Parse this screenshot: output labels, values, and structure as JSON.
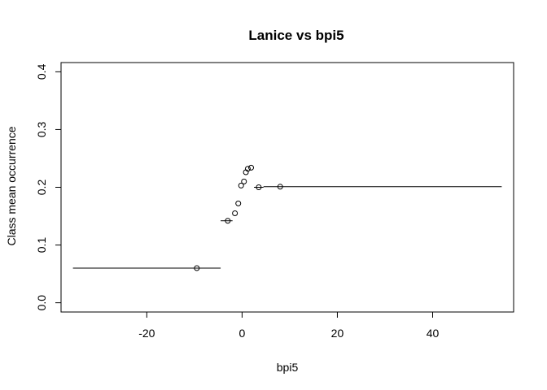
{
  "chart_data": {
    "type": "scatter",
    "title": "Lanice vs bpi5",
    "xlabel": "bpi5",
    "ylabel": "Class mean occurrence",
    "xlim": [
      -38,
      57
    ],
    "ylim": [
      -0.016,
      0.416
    ],
    "xticks": [
      -20,
      0,
      20,
      40
    ],
    "xtick_labels": [
      "-20",
      "0",
      "20",
      "40"
    ],
    "yticks": [
      0.0,
      0.1,
      0.2,
      0.3,
      0.4
    ],
    "ytick_labels": [
      "0.0",
      "0.1",
      "0.2",
      "0.3",
      "0.4"
    ],
    "grid": false,
    "points": [
      {
        "x": -9.5,
        "y": 0.06,
        "xmin": -35.5,
        "xmax": -4.5
      },
      {
        "x": -3.0,
        "y": 0.142,
        "xmin": -4.5,
        "xmax": -2.0
      },
      {
        "x": -1.5,
        "y": 0.155
      },
      {
        "x": -0.8,
        "y": 0.172
      },
      {
        "x": -0.2,
        "y": 0.203
      },
      {
        "x": 0.4,
        "y": 0.21
      },
      {
        "x": 0.8,
        "y": 0.226
      },
      {
        "x": 1.2,
        "y": 0.232
      },
      {
        "x": 1.9,
        "y": 0.234
      },
      {
        "x": 3.5,
        "y": 0.2,
        "xmin": 2.5,
        "xmax": 4.5
      },
      {
        "x": 8.0,
        "y": 0.201,
        "xmin": 4.5,
        "xmax": 54.5
      }
    ]
  }
}
